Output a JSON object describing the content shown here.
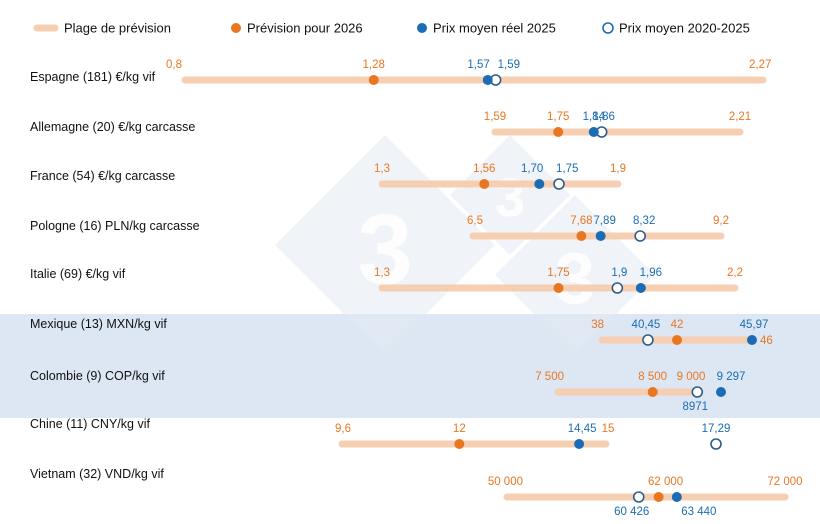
{
  "chart_data": {
    "type": "scatter",
    "colors": {
      "range": "#f6cfb3",
      "forecast": "#e87722",
      "actual": "#1c6cb5",
      "average": "#2e5d8a",
      "band": "#dce7f3",
      "watermark": "#e4ebf3"
    },
    "legend": [
      {
        "key": "range",
        "label": "Plage de prévision",
        "marker": "band"
      },
      {
        "key": "forecast",
        "label": "Prévision pour 2026",
        "marker": "filled-circle"
      },
      {
        "key": "actual",
        "label": "Prix moyen réel 2025",
        "marker": "filled-circle"
      },
      {
        "key": "average",
        "label": "Prix moyen 2020-2025",
        "marker": "open-circle"
      }
    ],
    "legend_position": "top",
    "rows": [
      {
        "label": "Espagne (181) €/kg vif",
        "min": 0.8,
        "max": 2.27,
        "forecast": 1.28,
        "actual": 1.57,
        "average": 1.59,
        "labels": {
          "min": "0,8",
          "max": "2,27",
          "forecast": "1,28",
          "actual": "1,57",
          "average": "1,59"
        },
        "highlight": false
      },
      {
        "label": "Allemagne (20) €/kg carcasse",
        "min": 1.59,
        "max": 2.21,
        "forecast": 1.75,
        "actual": 1.84,
        "average": 1.86,
        "labels": {
          "min": "1,59",
          "max": "2,21",
          "forecast": "1,75",
          "actual": "1,84",
          "average": "1,86"
        },
        "highlight": false
      },
      {
        "label": "France (54) €/kg carcasse",
        "min": 1.3,
        "max": 1.9,
        "forecast": 1.56,
        "actual": 1.7,
        "average": 1.75,
        "labels": {
          "min": "1,3",
          "max": "1,9",
          "forecast": "1,56",
          "actual": "1,70",
          "average": "1,75"
        },
        "highlight": false
      },
      {
        "label": "Pologne (16) PLN/kg carcasse",
        "min": 6.5,
        "max": 9.2,
        "forecast": 7.68,
        "actual": 7.89,
        "average": 8.32,
        "labels": {
          "min": "6,5",
          "max": "9,2",
          "forecast": "7,68",
          "actual": "7,89",
          "average": "8,32"
        },
        "highlight": false
      },
      {
        "label": "Italie (69) €/kg vif",
        "min": 1.3,
        "max": 2.2,
        "forecast": 1.75,
        "actual": 1.96,
        "average": 1.9,
        "labels": {
          "min": "1,3",
          "max": "2,2",
          "forecast": "1,75",
          "actual": "1,96",
          "average": "1,9"
        },
        "highlight": false
      },
      {
        "label": "Mexique (13) MXN/kg vif",
        "min": 38,
        "max": 46,
        "forecast": 42,
        "actual": 45.97,
        "average": 40.45,
        "labels": {
          "min": "38",
          "max": "46",
          "forecast": "42",
          "actual": "45,97",
          "average": "40,45"
        },
        "highlight": true
      },
      {
        "label": "Colombie (9) COP/kg vif",
        "min": 7500,
        "max": 9000,
        "forecast": 8500,
        "actual": 9297,
        "average": 8971,
        "labels": {
          "min": "7 500",
          "max": "9 000",
          "forecast": "8 500",
          "actual": "9 297",
          "average": "8971"
        },
        "highlight": true
      },
      {
        "label": "Chine (11) CNY/kg vif",
        "min": 9.6,
        "max": 15,
        "forecast": 12,
        "actual": 14.45,
        "average": 17.29,
        "labels": {
          "min": "9,6",
          "max": "15",
          "forecast": "12",
          "actual": "14,45",
          "average": "17,29"
        },
        "highlight": false
      },
      {
        "label": "Vietnam (32) VND/kg vif",
        "min": 50000,
        "max": 72000,
        "forecast": 62000,
        "actual": 63440,
        "average": 60426,
        "labels": {
          "min": "50 000",
          "max": "72 000",
          "forecast": "62 000",
          "actual": "63 440",
          "average": "60 426"
        },
        "highlight": false
      }
    ]
  }
}
